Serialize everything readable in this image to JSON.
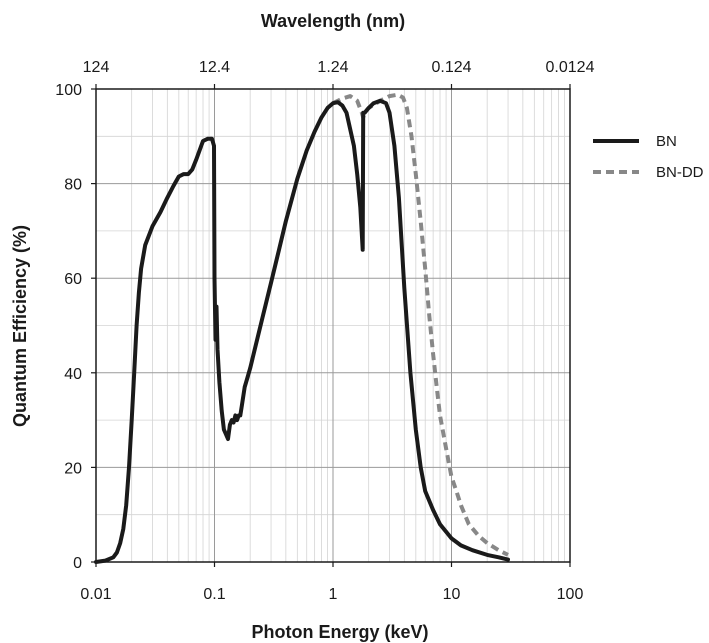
{
  "chart_data": {
    "type": "line",
    "xlabel": "Photon Energy (keV)",
    "x2label": "Wavelength (nm)",
    "ylabel": "Quantum Efficiency (%)",
    "xscale": "log",
    "xlim": [
      0.01,
      100
    ],
    "ylim": [
      0,
      100
    ],
    "x_ticks": [
      "0.01",
      "0.1",
      "1",
      "10",
      "100"
    ],
    "x2_ticks": [
      "124",
      "12.4",
      "1.24",
      "0.124",
      "0.0124"
    ],
    "y_ticks": [
      "0",
      "20",
      "40",
      "60",
      "80",
      "100"
    ],
    "grid": true,
    "legend_position": "right-top",
    "series": [
      {
        "name": "BN",
        "color": "#1a1a1a",
        "style": "solid",
        "points": [
          [
            0.01,
            0
          ],
          [
            0.012,
            0.3
          ],
          [
            0.014,
            1
          ],
          [
            0.015,
            2
          ],
          [
            0.016,
            4
          ],
          [
            0.017,
            7
          ],
          [
            0.018,
            12
          ],
          [
            0.019,
            20
          ],
          [
            0.02,
            30
          ],
          [
            0.021,
            40
          ],
          [
            0.022,
            50
          ],
          [
            0.023,
            57
          ],
          [
            0.024,
            62
          ],
          [
            0.026,
            67
          ],
          [
            0.03,
            71
          ],
          [
            0.035,
            74
          ],
          [
            0.04,
            77
          ],
          [
            0.045,
            79.5
          ],
          [
            0.05,
            81.5
          ],
          [
            0.055,
            82
          ],
          [
            0.06,
            82
          ],
          [
            0.065,
            83
          ],
          [
            0.07,
            85
          ],
          [
            0.08,
            89
          ],
          [
            0.088,
            89.5
          ],
          [
            0.095,
            89.5
          ],
          [
            0.099,
            88
          ],
          [
            0.1,
            60
          ],
          [
            0.102,
            47
          ],
          [
            0.104,
            54
          ],
          [
            0.106,
            45
          ],
          [
            0.11,
            38
          ],
          [
            0.115,
            32
          ],
          [
            0.12,
            28
          ],
          [
            0.125,
            27
          ],
          [
            0.13,
            26
          ],
          [
            0.135,
            29
          ],
          [
            0.14,
            30
          ],
          [
            0.145,
            29.5
          ],
          [
            0.15,
            31
          ],
          [
            0.155,
            30
          ],
          [
            0.16,
            31
          ],
          [
            0.165,
            31
          ],
          [
            0.17,
            33
          ],
          [
            0.18,
            37
          ],
          [
            0.19,
            39
          ],
          [
            0.2,
            41
          ],
          [
            0.25,
            51
          ],
          [
            0.3,
            59
          ],
          [
            0.35,
            66
          ],
          [
            0.4,
            72
          ],
          [
            0.5,
            81
          ],
          [
            0.6,
            87
          ],
          [
            0.7,
            91
          ],
          [
            0.8,
            94
          ],
          [
            0.9,
            96
          ],
          [
            1.0,
            97
          ],
          [
            1.1,
            97.2
          ],
          [
            1.2,
            96.5
          ],
          [
            1.3,
            95
          ],
          [
            1.5,
            88
          ],
          [
            1.6,
            82
          ],
          [
            1.7,
            75
          ],
          [
            1.78,
            66
          ],
          [
            1.8,
            95
          ],
          [
            1.85,
            95
          ],
          [
            2.0,
            96
          ],
          [
            2.2,
            97
          ],
          [
            2.5,
            97.5
          ],
          [
            2.8,
            97
          ],
          [
            3.0,
            95
          ],
          [
            3.3,
            88
          ],
          [
            3.6,
            77
          ],
          [
            4.0,
            58
          ],
          [
            4.5,
            40
          ],
          [
            5.0,
            28
          ],
          [
            5.5,
            20
          ],
          [
            6.0,
            15
          ],
          [
            7.0,
            11
          ],
          [
            8.0,
            8
          ],
          [
            10.0,
            5
          ],
          [
            12.0,
            3.5
          ],
          [
            15.0,
            2.5
          ],
          [
            20.0,
            1.5
          ],
          [
            25.0,
            1
          ],
          [
            30.0,
            0.5
          ]
        ]
      },
      {
        "name": "BN-DD",
        "color": "#888888",
        "style": "dashed",
        "points": [
          [
            1.0,
            97
          ],
          [
            1.2,
            98
          ],
          [
            1.4,
            98.5
          ],
          [
            1.6,
            97.5
          ],
          [
            1.75,
            95
          ],
          [
            1.8,
            94
          ],
          [
            1.85,
            95
          ],
          [
            2.0,
            96
          ],
          [
            2.5,
            97.5
          ],
          [
            3.0,
            98.5
          ],
          [
            3.5,
            98.8
          ],
          [
            3.9,
            98.2
          ],
          [
            4.2,
            96
          ],
          [
            4.6,
            90
          ],
          [
            5.0,
            82
          ],
          [
            5.5,
            72
          ],
          [
            6.0,
            62
          ],
          [
            6.5,
            52
          ],
          [
            7.0,
            44
          ],
          [
            7.5,
            37
          ],
          [
            8.0,
            31
          ],
          [
            9.0,
            24
          ],
          [
            10.0,
            18
          ],
          [
            11.0,
            15
          ],
          [
            12.0,
            12
          ],
          [
            14.0,
            8
          ],
          [
            17.0,
            5.5
          ],
          [
            20.0,
            4
          ],
          [
            25.0,
            2.5
          ],
          [
            30.0,
            1.5
          ]
        ]
      }
    ]
  }
}
